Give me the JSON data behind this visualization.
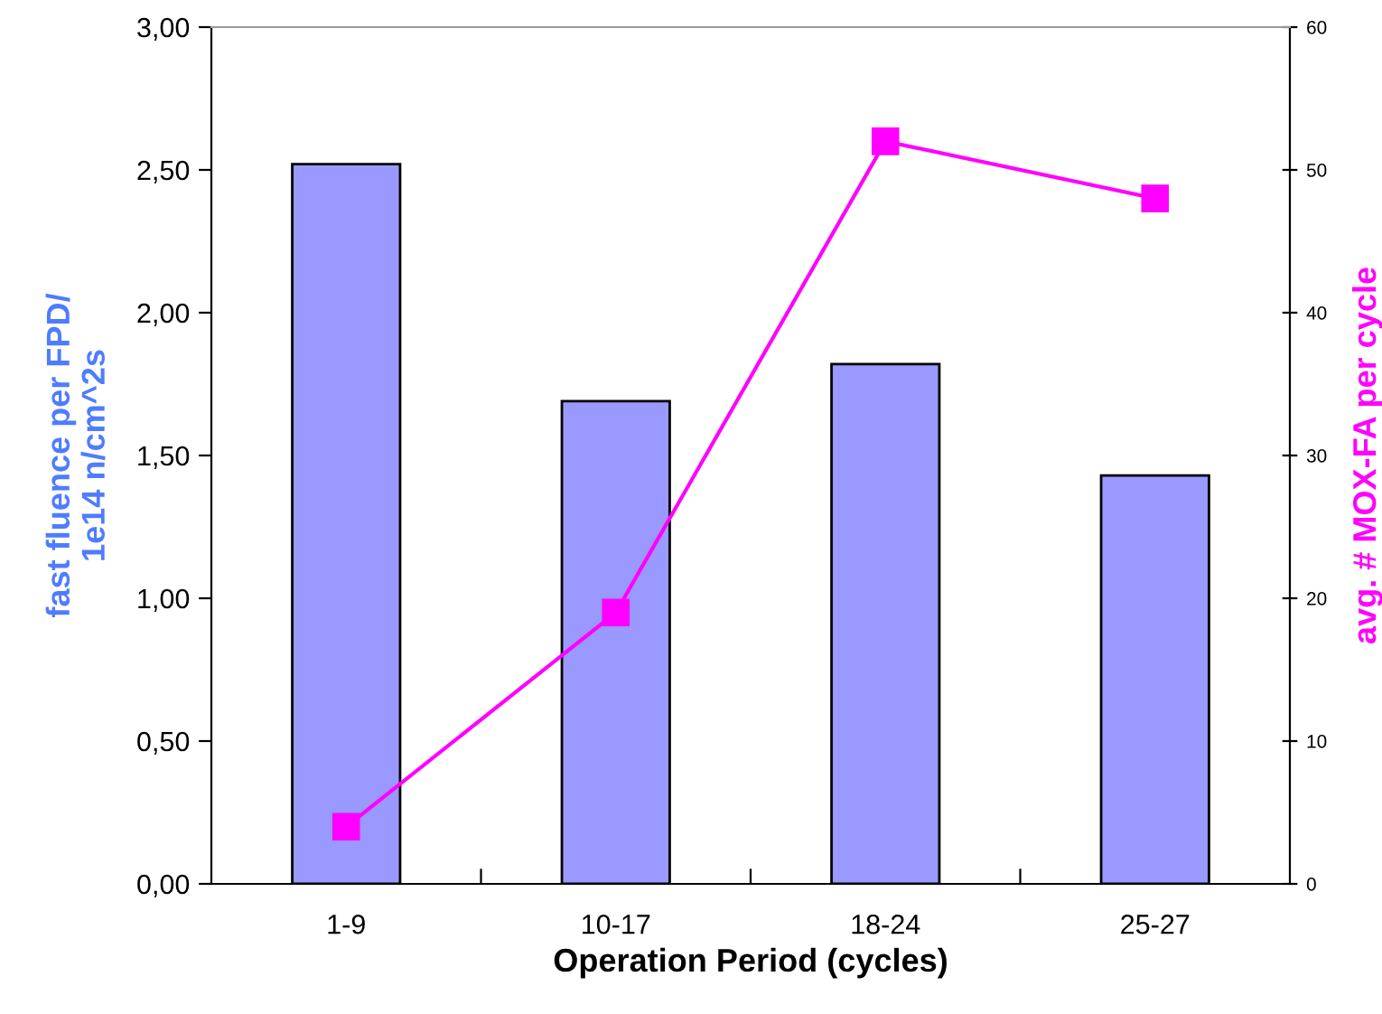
{
  "chart_data": {
    "type": "bar",
    "xlabel": "Operation Period (cycles)",
    "ylabel": "fast fluence per FPD/\n1e14 n/cm^2s",
    "y2label": "avg. # MOX-FA per cycle",
    "categories": [
      "1-9",
      "10-17",
      "18-24",
      "25-27"
    ],
    "series": [
      {
        "color": "#9999ff",
        "values": [
          2.52,
          1.69,
          1.82,
          1.43
        ]
      },
      {
        "type": "line",
        "axis": "y2",
        "color": "#ff00ff",
        "marker": "square",
        "values": [
          4,
          19,
          52,
          48
        ]
      }
    ],
    "ylim": [
      0,
      3
    ],
    "yticks": [
      {
        "value": 0,
        "label": "0,00"
      },
      {
        "value": 0.5,
        "label": "0,50"
      },
      {
        "value": 1,
        "label": "1,00"
      },
      {
        "value": 1.5,
        "label": "1,50"
      },
      {
        "value": 2,
        "label": "2,00"
      },
      {
        "value": 2.5,
        "label": "2,50"
      },
      {
        "value": 3,
        "label": "3,00"
      }
    ],
    "y2lim": [
      0,
      60
    ],
    "y2ticks": [
      0,
      10,
      20,
      30,
      40,
      50,
      60
    ],
    "grid": false,
    "legend": false
  }
}
